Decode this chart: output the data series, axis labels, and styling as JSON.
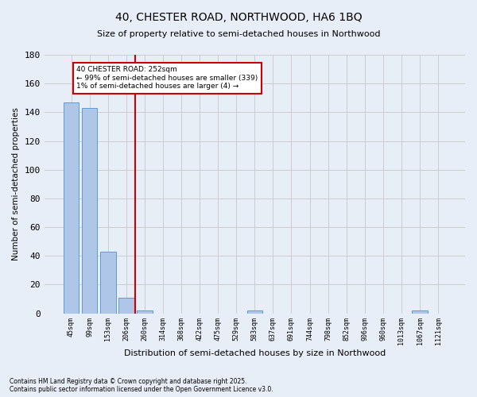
{
  "title_line1": "40, CHESTER ROAD, NORTHWOOD, HA6 1BQ",
  "title_line2": "Size of property relative to semi-detached houses in Northwood",
  "xlabel": "Distribution of semi-detached houses by size in Northwood",
  "ylabel": "Number of semi-detached properties",
  "footer": "Contains HM Land Registry data © Crown copyright and database right 2025.\nContains public sector information licensed under the Open Government Licence v3.0.",
  "categories": [
    "45sqm",
    "99sqm",
    "153sqm",
    "206sqm",
    "260sqm",
    "314sqm",
    "368sqm",
    "422sqm",
    "475sqm",
    "529sqm",
    "583sqm",
    "637sqm",
    "691sqm",
    "744sqm",
    "798sqm",
    "852sqm",
    "906sqm",
    "960sqm",
    "1013sqm",
    "1067sqm",
    "1121sqm"
  ],
  "values": [
    147,
    143,
    43,
    11,
    2,
    0,
    0,
    0,
    0,
    0,
    2,
    0,
    0,
    0,
    0,
    0,
    0,
    0,
    0,
    2,
    0
  ],
  "bar_color": "#aec6e8",
  "bar_edge_color": "#5b9bd5",
  "vline_color": "#cc0000",
  "annotation_text": "40 CHESTER ROAD: 252sqm\n← 99% of semi-detached houses are smaller (339)\n1% of semi-detached houses are larger (4) →",
  "annotation_box_color": "#cc0000",
  "ylim": [
    0,
    180
  ],
  "yticks": [
    0,
    20,
    40,
    60,
    80,
    100,
    120,
    140,
    160,
    180
  ],
  "grid_color": "#cccccc",
  "background_color": "#e8eef7",
  "plot_bg_color": "#e8eef7"
}
